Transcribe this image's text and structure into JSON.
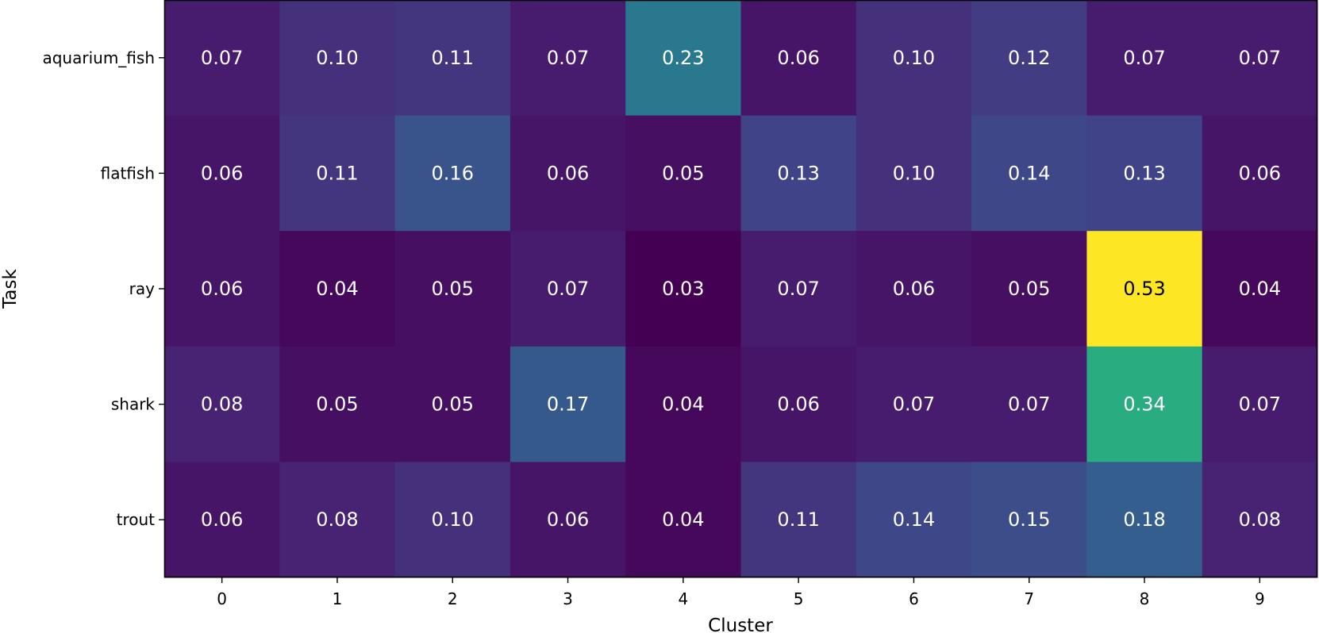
{
  "chart_data": {
    "type": "heatmap",
    "title": "",
    "xlabel": "Cluster",
    "ylabel": "Task",
    "x_categories": [
      "0",
      "1",
      "2",
      "3",
      "4",
      "5",
      "6",
      "7",
      "8",
      "9"
    ],
    "y_categories": [
      "aquarium_fish",
      "flatfish",
      "ray",
      "shark",
      "trout"
    ],
    "values": [
      [
        0.07,
        0.1,
        0.11,
        0.07,
        0.23,
        0.06,
        0.1,
        0.12,
        0.07,
        0.07
      ],
      [
        0.06,
        0.11,
        0.16,
        0.06,
        0.05,
        0.13,
        0.1,
        0.14,
        0.13,
        0.06
      ],
      [
        0.06,
        0.04,
        0.05,
        0.07,
        0.03,
        0.07,
        0.06,
        0.05,
        0.53,
        0.04
      ],
      [
        0.08,
        0.05,
        0.05,
        0.17,
        0.04,
        0.06,
        0.07,
        0.07,
        0.34,
        0.07
      ],
      [
        0.06,
        0.08,
        0.1,
        0.06,
        0.04,
        0.11,
        0.14,
        0.15,
        0.18,
        0.08
      ]
    ],
    "colormap": "viridis",
    "color_range": [
      0.03,
      0.53
    ],
    "legend": "none",
    "grid": false
  }
}
